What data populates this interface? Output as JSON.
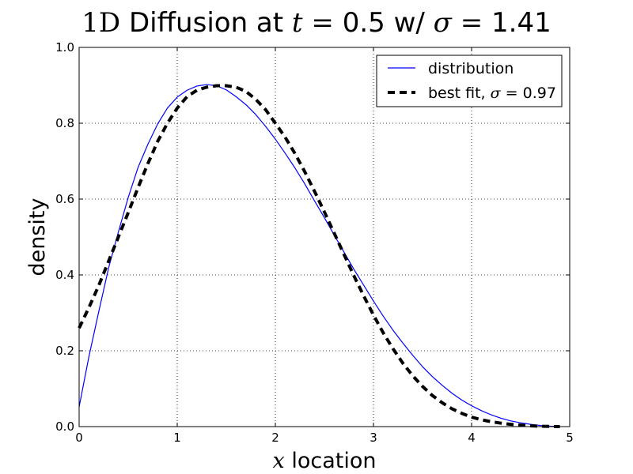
{
  "chart_data": {
    "type": "line",
    "title": {
      "math1": "1D",
      "text1": " Diffusion at ",
      "math2": "t",
      "op2": "=",
      "val2": "0.5",
      "text3": " w/ ",
      "math3": "σ",
      "op3": "=",
      "val3": "1.41"
    },
    "xlabel": {
      "math": "x",
      "text": " location"
    },
    "ylabel": "density",
    "xlim": [
      0,
      5
    ],
    "ylim": [
      0,
      1.0
    ],
    "xticks": [
      "0",
      "1",
      "2",
      "3",
      "4",
      "5"
    ],
    "yticks": [
      "0.0",
      "0.2",
      "0.4",
      "0.6",
      "0.8",
      "1.0"
    ],
    "grid": true,
    "legend_position": "upper right",
    "series": [
      {
        "name": "distribution",
        "style": "solid",
        "color": "#0000ff",
        "x": [
          0.0,
          0.1,
          0.2,
          0.3,
          0.4,
          0.5,
          0.6,
          0.7,
          0.8,
          0.9,
          1.0,
          1.1,
          1.2,
          1.3,
          1.4,
          1.5,
          1.6,
          1.7,
          1.8,
          1.9,
          2.0,
          2.1,
          2.2,
          2.3,
          2.4,
          2.5,
          2.6,
          2.7,
          2.8,
          2.9,
          3.0,
          3.1,
          3.2,
          3.3,
          3.4,
          3.5,
          3.6,
          3.7,
          3.8,
          3.9,
          4.0,
          4.1,
          4.2,
          4.3,
          4.4,
          4.5,
          4.6,
          4.7,
          4.8,
          4.9
        ],
        "values": [
          0.052,
          0.185,
          0.303,
          0.418,
          0.513,
          0.604,
          0.683,
          0.744,
          0.798,
          0.84,
          0.869,
          0.887,
          0.898,
          0.902,
          0.899,
          0.888,
          0.87,
          0.849,
          0.823,
          0.792,
          0.758,
          0.721,
          0.682,
          0.64,
          0.595,
          0.551,
          0.505,
          0.46,
          0.415,
          0.373,
          0.331,
          0.291,
          0.254,
          0.22,
          0.188,
          0.158,
          0.132,
          0.109,
          0.088,
          0.07,
          0.055,
          0.042,
          0.031,
          0.022,
          0.015,
          0.01,
          0.006,
          0.003,
          0.001,
          0.0
        ]
      },
      {
        "name": "best fit, ",
        "name_math": "σ",
        "name_op": "=",
        "name_val": "0.97",
        "style": "dashed",
        "color": "#000000",
        "x": [
          0.0,
          0.1,
          0.2,
          0.3,
          0.4,
          0.5,
          0.6,
          0.7,
          0.8,
          0.9,
          1.0,
          1.1,
          1.2,
          1.3,
          1.4,
          1.5,
          1.6,
          1.7,
          1.8,
          1.9,
          2.0,
          2.1,
          2.2,
          2.3,
          2.4,
          2.5,
          2.6,
          2.7,
          2.8,
          2.9,
          3.0,
          3.1,
          3.2,
          3.3,
          3.4,
          3.5,
          3.6,
          3.7,
          3.8,
          3.9,
          4.0,
          4.1,
          4.2,
          4.3,
          4.4,
          4.5,
          4.6,
          4.7,
          4.8,
          4.9
        ],
        "values": [
          0.26,
          0.314,
          0.372,
          0.436,
          0.5,
          0.564,
          0.63,
          0.693,
          0.752,
          0.8,
          0.84,
          0.87,
          0.887,
          0.895,
          0.899,
          0.899,
          0.895,
          0.884,
          0.863,
          0.836,
          0.8,
          0.763,
          0.72,
          0.672,
          0.62,
          0.566,
          0.51,
          0.454,
          0.398,
          0.345,
          0.294,
          0.247,
          0.205,
          0.167,
          0.134,
          0.106,
          0.082,
          0.063,
          0.047,
          0.035,
          0.025,
          0.018,
          0.013,
          0.009,
          0.006,
          0.004,
          0.002,
          0.001,
          0.0005,
          0.0
        ]
      }
    ]
  }
}
